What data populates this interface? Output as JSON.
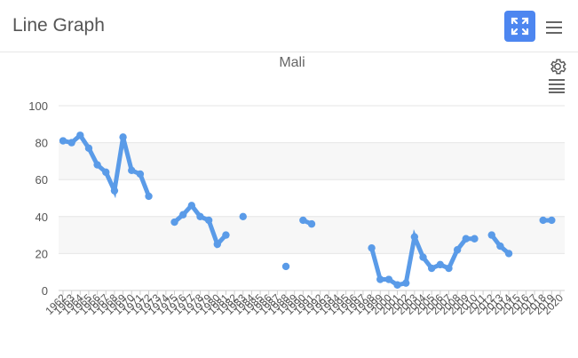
{
  "header": {
    "title": "Line Graph"
  },
  "icons": {
    "expand": "expand-icon",
    "menu": "hamburger-menu-icon",
    "settings": "gear-icon",
    "list": "list-icon"
  },
  "colors": {
    "accent": "#4d86f0",
    "series": "#5a9be8"
  },
  "chart_data": {
    "type": "line",
    "title": "Mali",
    "xlabel": "",
    "ylabel": "",
    "ylim": [
      0,
      100
    ],
    "yticks": [
      0,
      20,
      40,
      60,
      80,
      100
    ],
    "x": [
      "1962",
      "1963",
      "1964",
      "1965",
      "1966",
      "1967",
      "1968",
      "1969",
      "1970",
      "1971",
      "1972",
      "1973",
      "1974",
      "1975",
      "1976",
      "1977",
      "1978",
      "1979",
      "1980",
      "1981",
      "1982",
      "1983",
      "1984",
      "1985",
      "1986",
      "1987",
      "1988",
      "1989",
      "1990",
      "1991",
      "1992",
      "1993",
      "1994",
      "1995",
      "1996",
      "1997",
      "1998",
      "1999",
      "2000",
      "2001",
      "2002",
      "2003",
      "2004",
      "2005",
      "2006",
      "2007",
      "2008",
      "2009",
      "2010",
      "2011",
      "2012",
      "2013",
      "2014",
      "2015",
      "2016",
      "2017",
      "2018",
      "2019",
      "2020"
    ],
    "series": [
      {
        "values": [
          81,
          80,
          84,
          77,
          68,
          64,
          54,
          83,
          65,
          63,
          51,
          null,
          null,
          37,
          41,
          46,
          40,
          38,
          25,
          30,
          null,
          40,
          null,
          null,
          null,
          null,
          13,
          null,
          38,
          36,
          null,
          null,
          null,
          null,
          null,
          null,
          23,
          6,
          6,
          3,
          4,
          29,
          18,
          12,
          14,
          12,
          22,
          28,
          28,
          null,
          30,
          24,
          20,
          null,
          null,
          null,
          38,
          38,
          null
        ]
      }
    ],
    "grid": true,
    "legend": "none"
  }
}
